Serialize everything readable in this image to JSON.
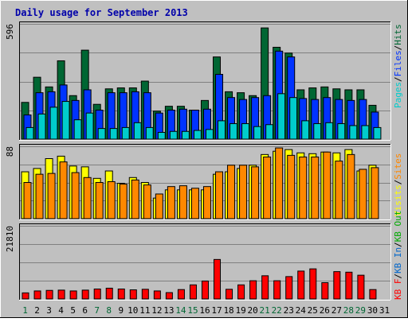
{
  "title": "Daily usage for September 2013",
  "colors": {
    "background": "#c0c0c0",
    "panel": "#c0c0c0",
    "border_dark": "#808080",
    "grid": "#808080",
    "hits": "#006633",
    "files": "#0033ff",
    "pages": "#00cccc",
    "visits": "#ffff00",
    "sites": "#ff8800",
    "kb_out": "#00aa00",
    "kb_in": "#0066cc",
    "kb_f": "#ff0000",
    "title": "#0000aa",
    "weekday_label": "#000000",
    "weekend_label": "#006633"
  },
  "labels": {
    "panel1_ymax": "596",
    "panel2_ymax": "88",
    "panel3_ymax": "21810",
    "panel1_legend": [
      "Pages",
      "Files",
      "Hits"
    ],
    "panel2_legend": [
      "Visits",
      "Sites"
    ],
    "panel3_legend": [
      "KB F",
      "KB In",
      "KB Out"
    ]
  },
  "chart_data": {
    "type": "bar",
    "x": [
      "1",
      "2",
      "3",
      "4",
      "5",
      "6",
      "7",
      "8",
      "9",
      "10",
      "11",
      "12",
      "13",
      "14",
      "15",
      "16",
      "17",
      "18",
      "19",
      "20",
      "21",
      "22",
      "23",
      "24",
      "25",
      "26",
      "27",
      "28",
      "29",
      "30",
      "31"
    ],
    "weekend_days": [
      1,
      7,
      8,
      14,
      15,
      21,
      22,
      28,
      29
    ],
    "panels": [
      {
        "ylim": [
          0,
          596
        ],
        "series": [
          {
            "name": "Hits",
            "values": [
              190,
              320,
              270,
              405,
              225,
              460,
              180,
              260,
              265,
              265,
              300,
              145,
              170,
              170,
              150,
              200,
              425,
              245,
              240,
              225,
              575,
              475,
              445,
              255,
              265,
              270,
              260,
              255,
              255,
              175,
              0
            ]
          },
          {
            "name": "Files",
            "values": [
              125,
              240,
              245,
              280,
              200,
              255,
              150,
              240,
              240,
              245,
              240,
              135,
              150,
              155,
              150,
              155,
              335,
              215,
              205,
              215,
              225,
              455,
              425,
              210,
              205,
              215,
              205,
              200,
              205,
              140,
              0
            ]
          },
          {
            "name": "Pages",
            "values": [
              60,
              130,
              165,
              195,
              100,
              135,
              55,
              55,
              60,
              85,
              60,
              35,
              40,
              40,
              45,
              50,
              95,
              80,
              80,
              65,
              75,
              235,
              215,
              95,
              80,
              85,
              80,
              70,
              70,
              60,
              0
            ]
          }
        ]
      },
      {
        "ylim": [
          0,
          88
        ],
        "series": [
          {
            "name": "Visits",
            "values": [
              57,
              61,
              73,
              76,
              64,
              63,
              49,
              58,
              43,
              50,
              44,
              25,
              35,
              35,
              35,
              35,
              54,
              57,
              61,
              65,
              78,
              82,
              84,
              80,
              79,
              81,
              80,
              84,
              58,
              65,
              0
            ]
          },
          {
            "name": "Sites",
            "values": [
              44,
              54,
              55,
              69,
              56,
              50,
              44,
              45,
              42,
              47,
              41,
              30,
              39,
              40,
              37,
              39,
              57,
              65,
              65,
              63,
              75,
              86,
              77,
              75,
              75,
              81,
              70,
              78,
              60,
              62,
              0
            ]
          }
        ]
      },
      {
        "ylim": [
          0,
          26500
        ],
        "series": [
          {
            "name": "KB F",
            "values": [
              2200,
              2900,
              3100,
              3200,
              2900,
              3200,
              3600,
              3900,
              3600,
              3300,
              3500,
              2900,
              2300,
              3400,
              5100,
              6500,
              14300,
              3500,
              5100,
              6600,
              8400,
              6600,
              8100,
              10100,
              10900,
              5900,
              9900,
              9700,
              8600,
              3400,
              0
            ]
          }
        ]
      }
    ]
  }
}
